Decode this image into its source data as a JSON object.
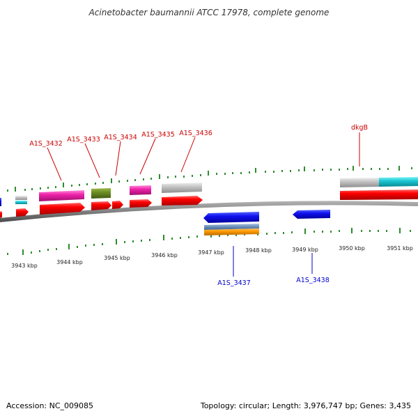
{
  "map": {
    "title": "Acinetobacter baumannii ATCC 17978, complete genome",
    "accession_label": "Accession: NC_009085",
    "summary_label": "Topology: circular; Length: 3,976,747 bp; Genes: 3,435",
    "colors": {
      "forward_label": "#cc0000",
      "reverse_label": "#0000cc",
      "tick": "#2e8b2e",
      "backbone": "#7a7a7a"
    }
  },
  "scale_ticks": [
    {
      "kbp": 3943,
      "label": "3943 kbp"
    },
    {
      "kbp": 3944,
      "label": "3944 kbp"
    },
    {
      "kbp": 3945,
      "label": "3945 kbp"
    },
    {
      "kbp": 3946,
      "label": "3946 kbp"
    },
    {
      "kbp": 3947,
      "label": "3947 kbp"
    },
    {
      "kbp": 3948,
      "label": "3948 kbp"
    },
    {
      "kbp": 3949,
      "label": "3949 kbp"
    },
    {
      "kbp": 3950,
      "label": "3950 kbp"
    },
    {
      "kbp": 3951,
      "label": "3951 kbp"
    }
  ],
  "gene_labels": [
    {
      "name": "A1S_3432",
      "strand": "forward"
    },
    {
      "name": "A1S_3433",
      "strand": "forward"
    },
    {
      "name": "A1S_3434",
      "strand": "forward"
    },
    {
      "name": "A1S_3435",
      "strand": "forward"
    },
    {
      "name": "A1S_3436",
      "strand": "forward"
    },
    {
      "name": "dkgB",
      "strand": "forward"
    },
    {
      "name": "A1S_3437",
      "strand": "reverse"
    },
    {
      "name": "A1S_3438",
      "strand": "reverse"
    }
  ]
}
